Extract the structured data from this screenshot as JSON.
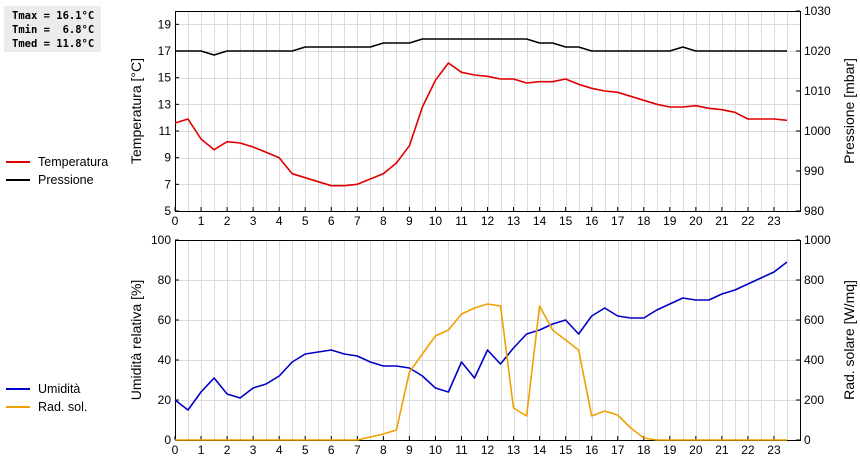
{
  "stats": {
    "tmax": "Tmax = 16.1°C",
    "tmin": "Tmin =  6.8°C",
    "tmed": "Tmed = 11.8°C"
  },
  "legend_top": [
    {
      "label": "Temperatura",
      "color": "#e00000"
    },
    {
      "label": "Pressione",
      "color": "#000000"
    }
  ],
  "legend_bottom": [
    {
      "label": "Umidità",
      "color": "#0000c8"
    },
    {
      "label": "Rad. sol.",
      "color": "#f0a000"
    }
  ],
  "chart_data": [
    {
      "type": "line",
      "ylabel_left": "Temperatura [°C]",
      "ylabel_right": "Pressione [mbar]",
      "xlim": [
        0,
        24
      ],
      "x_ticks": [
        "0",
        "1",
        "2",
        "3",
        "4",
        "5",
        "6",
        "7",
        "8",
        "9",
        "10",
        "11",
        "12",
        "13",
        "14",
        "15",
        "16",
        "17",
        "18",
        "19",
        "20",
        "21",
        "22",
        "23"
      ],
      "ylim_left": [
        5,
        20
      ],
      "y_ticks_left": [
        "5",
        "7",
        "9",
        "11",
        "13",
        "15",
        "17",
        "19"
      ],
      "ylim_right": [
        980,
        1030
      ],
      "y_ticks_right": [
        "980",
        "990",
        "1000",
        "1010",
        "1020",
        "1030"
      ],
      "grid": true,
      "series": [
        {
          "name": "Temperatura",
          "axis": "left",
          "color": "#e00000",
          "x": [
            0,
            0.5,
            1,
            1.5,
            2,
            2.5,
            3,
            3.5,
            4,
            4.5,
            5,
            5.5,
            6,
            6.5,
            7,
            7.5,
            8,
            8.5,
            9,
            9.5,
            10,
            10.5,
            11,
            11.5,
            12,
            12.5,
            13,
            13.5,
            14,
            14.5,
            15,
            15.5,
            16,
            16.5,
            17,
            17.5,
            18,
            18.5,
            19,
            19.5,
            20,
            20.5,
            21,
            21.5,
            22,
            22.5,
            23,
            23.5
          ],
          "y": [
            11.6,
            11.9,
            10.4,
            9.6,
            10.2,
            10.1,
            9.8,
            9.4,
            9.0,
            7.8,
            7.5,
            7.2,
            6.9,
            6.9,
            7.0,
            7.4,
            7.8,
            8.6,
            9.9,
            12.8,
            14.8,
            16.1,
            15.4,
            15.2,
            15.1,
            14.9,
            14.9,
            14.6,
            14.7,
            14.7,
            14.9,
            14.5,
            14.2,
            14.0,
            13.9,
            13.6,
            13.3,
            13.0,
            12.8,
            12.8,
            12.9,
            12.7,
            12.6,
            12.4,
            11.9,
            11.9,
            11.9,
            11.8
          ]
        },
        {
          "name": "Pressione",
          "axis": "right",
          "color": "#000000",
          "x": [
            0,
            0.5,
            1,
            1.5,
            2,
            2.5,
            3,
            3.5,
            4,
            4.5,
            5,
            5.5,
            6,
            6.5,
            7,
            7.5,
            8,
            8.5,
            9,
            9.5,
            10,
            10.5,
            11,
            11.5,
            12,
            12.5,
            13,
            13.5,
            14,
            14.5,
            15,
            15.5,
            16,
            16.5,
            17,
            17.5,
            18,
            18.5,
            19,
            19.5,
            20,
            20.5,
            21,
            21.5,
            22,
            22.5,
            23,
            23.5
          ],
          "y": [
            1020,
            1020,
            1020,
            1019,
            1020,
            1020,
            1020,
            1020,
            1020,
            1020,
            1021,
            1021,
            1021,
            1021,
            1021,
            1021,
            1022,
            1022,
            1022,
            1023,
            1023,
            1023,
            1023,
            1023,
            1023,
            1023,
            1023,
            1023,
            1022,
            1022,
            1021,
            1021,
            1020,
            1020,
            1020,
            1020,
            1020,
            1020,
            1020,
            1021,
            1020,
            1020,
            1020,
            1020,
            1020,
            1020,
            1020,
            1020
          ]
        }
      ]
    },
    {
      "type": "line",
      "ylabel_left": "Umidità relativa [%]",
      "ylabel_right": "Rad. solare [W/mq]",
      "xlim": [
        0,
        24
      ],
      "x_ticks": [
        "0",
        "1",
        "2",
        "3",
        "4",
        "5",
        "6",
        "7",
        "8",
        "9",
        "10",
        "11",
        "12",
        "13",
        "14",
        "15",
        "16",
        "17",
        "18",
        "19",
        "20",
        "21",
        "22",
        "23"
      ],
      "ylim_left": [
        0,
        100
      ],
      "y_ticks_left": [
        "0",
        "20",
        "40",
        "60",
        "80",
        "100"
      ],
      "ylim_right": [
        0,
        1000
      ],
      "y_ticks_right": [
        "0",
        "200",
        "400",
        "600",
        "800",
        "1000"
      ],
      "grid": true,
      "series": [
        {
          "name": "Umidità",
          "axis": "left",
          "color": "#0000c8",
          "x": [
            0,
            0.5,
            1,
            1.5,
            2,
            2.5,
            3,
            3.5,
            4,
            4.5,
            5,
            5.5,
            6,
            6.5,
            7,
            7.5,
            8,
            8.5,
            9,
            9.5,
            10,
            10.5,
            11,
            11.5,
            12,
            12.5,
            13,
            13.5,
            14,
            14.5,
            15,
            15.5,
            16,
            16.5,
            17,
            17.5,
            18,
            18.5,
            19,
            19.5,
            20,
            20.5,
            21,
            21.5,
            22,
            22.5,
            23,
            23.5
          ],
          "y": [
            20,
            15,
            24,
            31,
            23,
            21,
            26,
            28,
            32,
            39,
            43,
            44,
            45,
            43,
            42,
            39,
            37,
            37,
            36,
            32,
            26,
            24,
            39,
            31,
            45,
            38,
            46,
            53,
            55,
            58,
            60,
            53,
            62,
            66,
            62,
            61,
            61,
            65,
            68,
            71,
            70,
            70,
            73,
            75,
            78,
            81,
            84,
            89
          ]
        },
        {
          "name": "Rad. sol.",
          "axis": "right",
          "color": "#f0a000",
          "x": [
            0,
            0.5,
            1,
            1.5,
            2,
            2.5,
            3,
            3.5,
            4,
            4.5,
            5,
            5.5,
            6,
            6.5,
            7,
            7.5,
            8,
            8.5,
            9,
            9.5,
            10,
            10.5,
            11,
            11.5,
            12,
            12.5,
            13,
            13.5,
            14,
            14.5,
            15,
            15.5,
            16,
            16.5,
            17,
            17.5,
            18,
            18.5,
            19,
            19.5,
            20,
            20.5,
            21,
            21.5,
            22,
            22.5,
            23,
            23.5
          ],
          "y": [
            0,
            0,
            0,
            0,
            0,
            0,
            0,
            0,
            0,
            0,
            0,
            0,
            0,
            0,
            0,
            15,
            30,
            50,
            340,
            430,
            520,
            550,
            630,
            660,
            680,
            670,
            160,
            120,
            670,
            550,
            500,
            450,
            120,
            145,
            125,
            60,
            10,
            0,
            0,
            0,
            0,
            0,
            0,
            0,
            0,
            0,
            0,
            0
          ]
        }
      ]
    }
  ]
}
